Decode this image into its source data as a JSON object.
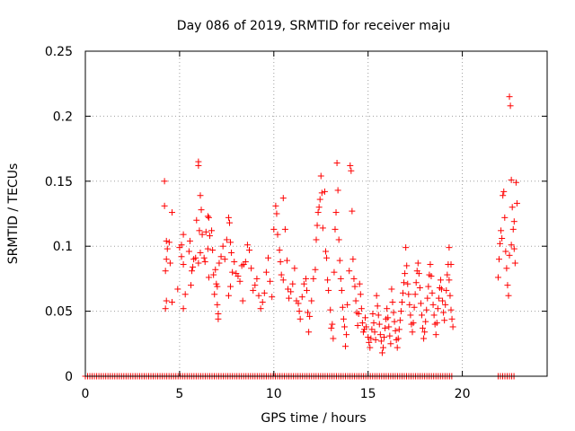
{
  "chart_data": {
    "type": "scatter",
    "title": "Day 086 of 2019, SRMTID for receiver maju",
    "xlabel": "GPS time / hours",
    "ylabel": "SRMTID / TECUs",
    "xlim": [
      0,
      24.5
    ],
    "ylim": [
      0,
      0.25
    ],
    "xticks": [
      0,
      5,
      10,
      15,
      20
    ],
    "xtick_labels": [
      "0",
      "5",
      "10",
      "15",
      "20"
    ],
    "yticks": [
      0,
      0.05,
      0.1,
      0.15,
      0.2,
      0.25
    ],
    "ytick_labels": [
      "0",
      "0.05",
      "0.1",
      "0.15",
      "0.2",
      "0.25"
    ],
    "grid": true,
    "marker": "+",
    "color": "#ff0000",
    "series": [
      {
        "name": "SRMTID",
        "zero_ranges": [
          [
            0.0,
            4.1
          ],
          [
            4.2,
            19.5
          ],
          [
            21.9,
            22.8
          ]
        ],
        "zero_spacing": 0.12,
        "points": [
          [
            4.2,
            0.15
          ],
          [
            4.2,
            0.131
          ],
          [
            4.25,
            0.081
          ],
          [
            4.3,
            0.104
          ],
          [
            4.3,
            0.058
          ],
          [
            4.25,
            0.052
          ],
          [
            4.3,
            0.09
          ],
          [
            4.35,
            0.098
          ],
          [
            4.45,
            0.103
          ],
          [
            4.6,
            0.126
          ],
          [
            4.6,
            0.057
          ],
          [
            4.5,
            0.087
          ],
          [
            4.9,
            0.067
          ],
          [
            5.0,
            0.099
          ],
          [
            5.1,
            0.101
          ],
          [
            5.2,
            0.109
          ],
          [
            5.2,
            0.052
          ],
          [
            5.3,
            0.063
          ],
          [
            5.1,
            0.092
          ],
          [
            5.2,
            0.086
          ],
          [
            5.5,
            0.096
          ],
          [
            5.55,
            0.104
          ],
          [
            5.6,
            0.07
          ],
          [
            5.65,
            0.081
          ],
          [
            5.7,
            0.084
          ],
          [
            5.75,
            0.09
          ],
          [
            5.85,
            0.091
          ],
          [
            5.9,
            0.12
          ],
          [
            6.0,
            0.165
          ],
          [
            6.0,
            0.162
          ],
          [
            6.05,
            0.112
          ],
          [
            6.1,
            0.139
          ],
          [
            6.15,
            0.128
          ],
          [
            6.2,
            0.109
          ],
          [
            6.0,
            0.087
          ],
          [
            6.1,
            0.095
          ],
          [
            6.3,
            0.091
          ],
          [
            6.35,
            0.088
          ],
          [
            6.4,
            0.111
          ],
          [
            6.5,
            0.123
          ],
          [
            6.55,
            0.122
          ],
          [
            6.6,
            0.108
          ],
          [
            6.7,
            0.112
          ],
          [
            6.8,
            0.078
          ],
          [
            6.75,
            0.097
          ],
          [
            6.5,
            0.098
          ],
          [
            6.55,
            0.076
          ],
          [
            6.9,
            0.082
          ],
          [
            6.85,
            0.063
          ],
          [
            6.95,
            0.071
          ],
          [
            7.0,
            0.069
          ],
          [
            7.0,
            0.055
          ],
          [
            7.05,
            0.048
          ],
          [
            7.05,
            0.044
          ],
          [
            7.1,
            0.087
          ],
          [
            7.2,
            0.092
          ],
          [
            7.3,
            0.1
          ],
          [
            7.4,
            0.09
          ],
          [
            7.5,
            0.105
          ],
          [
            7.6,
            0.122
          ],
          [
            7.65,
            0.118
          ],
          [
            7.7,
            0.103
          ],
          [
            7.75,
            0.095
          ],
          [
            7.8,
            0.08
          ],
          [
            7.7,
            0.069
          ],
          [
            7.6,
            0.062
          ],
          [
            7.9,
            0.088
          ],
          [
            8.0,
            0.079
          ],
          [
            8.1,
            0.077
          ],
          [
            8.2,
            0.073
          ],
          [
            8.3,
            0.085
          ],
          [
            8.35,
            0.058
          ],
          [
            8.4,
            0.086
          ],
          [
            8.5,
            0.088
          ],
          [
            8.6,
            0.101
          ],
          [
            8.7,
            0.097
          ],
          [
            8.8,
            0.083
          ],
          [
            8.9,
            0.066
          ],
          [
            9.0,
            0.07
          ],
          [
            9.1,
            0.075
          ],
          [
            9.2,
            0.062
          ],
          [
            9.3,
            0.052
          ],
          [
            9.4,
            0.057
          ],
          [
            9.5,
            0.064
          ],
          [
            9.6,
            0.08
          ],
          [
            9.7,
            0.091
          ],
          [
            9.8,
            0.073
          ],
          [
            9.9,
            0.061
          ],
          [
            10.0,
            0.113
          ],
          [
            10.1,
            0.131
          ],
          [
            10.15,
            0.125
          ],
          [
            10.2,
            0.109
          ],
          [
            10.3,
            0.097
          ],
          [
            10.35,
            0.088
          ],
          [
            10.4,
            0.078
          ],
          [
            10.5,
            0.074
          ],
          [
            10.5,
            0.137
          ],
          [
            10.6,
            0.113
          ],
          [
            10.7,
            0.089
          ],
          [
            10.75,
            0.067
          ],
          [
            10.8,
            0.06
          ],
          [
            10.9,
            0.065
          ],
          [
            11.0,
            0.071
          ],
          [
            11.1,
            0.083
          ],
          [
            11.2,
            0.058
          ],
          [
            11.3,
            0.056
          ],
          [
            11.35,
            0.05
          ],
          [
            11.4,
            0.044
          ],
          [
            11.5,
            0.061
          ],
          [
            11.6,
            0.071
          ],
          [
            11.7,
            0.075
          ],
          [
            11.75,
            0.066
          ],
          [
            11.8,
            0.049
          ],
          [
            11.85,
            0.034
          ],
          [
            11.9,
            0.046
          ],
          [
            12.0,
            0.058
          ],
          [
            12.1,
            0.075
          ],
          [
            12.2,
            0.082
          ],
          [
            12.25,
            0.105
          ],
          [
            12.3,
            0.116
          ],
          [
            12.35,
            0.126
          ],
          [
            12.4,
            0.13
          ],
          [
            12.45,
            0.136
          ],
          [
            12.5,
            0.154
          ],
          [
            12.55,
            0.141
          ],
          [
            12.6,
            0.114
          ],
          [
            12.7,
            0.142
          ],
          [
            12.75,
            0.096
          ],
          [
            12.8,
            0.091
          ],
          [
            12.85,
            0.074
          ],
          [
            12.9,
            0.066
          ],
          [
            13.0,
            0.051
          ],
          [
            13.05,
            0.037
          ],
          [
            13.1,
            0.04
          ],
          [
            13.15,
            0.029
          ],
          [
            13.2,
            0.08
          ],
          [
            13.25,
            0.113
          ],
          [
            13.3,
            0.126
          ],
          [
            13.35,
            0.164
          ],
          [
            13.4,
            0.143
          ],
          [
            13.45,
            0.105
          ],
          [
            13.5,
            0.089
          ],
          [
            13.55,
            0.075
          ],
          [
            13.6,
            0.066
          ],
          [
            13.65,
            0.053
          ],
          [
            13.7,
            0.044
          ],
          [
            13.75,
            0.038
          ],
          [
            13.8,
            0.023
          ],
          [
            13.85,
            0.032
          ],
          [
            13.9,
            0.055
          ],
          [
            14.0,
            0.081
          ],
          [
            14.05,
            0.162
          ],
          [
            14.1,
            0.158
          ],
          [
            14.15,
            0.127
          ],
          [
            14.2,
            0.09
          ],
          [
            14.25,
            0.075
          ],
          [
            14.3,
            0.069
          ],
          [
            14.35,
            0.058
          ],
          [
            14.4,
            0.049
          ],
          [
            14.45,
            0.039
          ],
          [
            14.5,
            0.048
          ],
          [
            14.55,
            0.071
          ],
          [
            14.6,
            0.063
          ],
          [
            14.65,
            0.052
          ],
          [
            14.7,
            0.041
          ],
          [
            14.75,
            0.034
          ],
          [
            14.8,
            0.036
          ],
          [
            14.85,
            0.045
          ],
          [
            14.9,
            0.038
          ],
          [
            15.0,
            0.03
          ],
          [
            15.05,
            0.026
          ],
          [
            15.1,
            0.022
          ],
          [
            15.15,
            0.029
          ],
          [
            15.2,
            0.036
          ],
          [
            15.25,
            0.048
          ],
          [
            15.3,
            0.041
          ],
          [
            15.35,
            0.034
          ],
          [
            15.4,
            0.028
          ],
          [
            15.45,
            0.062
          ],
          [
            15.5,
            0.054
          ],
          [
            15.55,
            0.047
          ],
          [
            15.6,
            0.04
          ],
          [
            15.65,
            0.032
          ],
          [
            15.7,
            0.027
          ],
          [
            15.75,
            0.018
          ],
          [
            15.8,
            0.022
          ],
          [
            15.85,
            0.03
          ],
          [
            15.9,
            0.037
          ],
          [
            15.95,
            0.044
          ],
          [
            16.0,
            0.052
          ],
          [
            16.05,
            0.045
          ],
          [
            16.1,
            0.038
          ],
          [
            16.15,
            0.031
          ],
          [
            16.2,
            0.025
          ],
          [
            16.25,
            0.067
          ],
          [
            16.3,
            0.057
          ],
          [
            16.35,
            0.049
          ],
          [
            16.4,
            0.042
          ],
          [
            16.45,
            0.035
          ],
          [
            16.5,
            0.028
          ],
          [
            16.55,
            0.022
          ],
          [
            16.6,
            0.029
          ],
          [
            16.65,
            0.036
          ],
          [
            16.7,
            0.043
          ],
          [
            16.75,
            0.05
          ],
          [
            16.8,
            0.057
          ],
          [
            16.85,
            0.064
          ],
          [
            16.9,
            0.072
          ],
          [
            16.95,
            0.079
          ],
          [
            17.0,
            0.099
          ],
          [
            17.05,
            0.085
          ],
          [
            17.1,
            0.071
          ],
          [
            17.15,
            0.063
          ],
          [
            17.2,
            0.055
          ],
          [
            17.25,
            0.047
          ],
          [
            17.3,
            0.04
          ],
          [
            17.35,
            0.034
          ],
          [
            17.4,
            0.041
          ],
          [
            17.45,
            0.053
          ],
          [
            17.5,
            0.063
          ],
          [
            17.55,
            0.072
          ],
          [
            17.6,
            0.081
          ],
          [
            17.65,
            0.087
          ],
          [
            17.7,
            0.079
          ],
          [
            17.75,
            0.068
          ],
          [
            17.8,
            0.056
          ],
          [
            17.85,
            0.047
          ],
          [
            17.9,
            0.037
          ],
          [
            17.95,
            0.029
          ],
          [
            18.0,
            0.034
          ],
          [
            18.05,
            0.042
          ],
          [
            18.1,
            0.051
          ],
          [
            18.15,
            0.06
          ],
          [
            18.2,
            0.069
          ],
          [
            18.25,
            0.078
          ],
          [
            18.3,
            0.086
          ],
          [
            18.35,
            0.077
          ],
          [
            18.4,
            0.064
          ],
          [
            18.45,
            0.055
          ],
          [
            18.5,
            0.047
          ],
          [
            18.55,
            0.04
          ],
          [
            18.6,
            0.032
          ],
          [
            18.65,
            0.041
          ],
          [
            18.7,
            0.052
          ],
          [
            18.75,
            0.06
          ],
          [
            18.8,
            0.068
          ],
          [
            18.85,
            0.074
          ],
          [
            18.9,
            0.067
          ],
          [
            18.95,
            0.058
          ],
          [
            19.0,
            0.049
          ],
          [
            19.05,
            0.043
          ],
          [
            19.1,
            0.055
          ],
          [
            19.15,
            0.066
          ],
          [
            19.2,
            0.078
          ],
          [
            19.25,
            0.086
          ],
          [
            19.3,
            0.074
          ],
          [
            19.35,
            0.062
          ],
          [
            19.4,
            0.051
          ],
          [
            19.45,
            0.044
          ],
          [
            19.5,
            0.038
          ],
          [
            19.3,
            0.099
          ],
          [
            19.4,
            0.086
          ],
          [
            21.9,
            0.076
          ],
          [
            21.95,
            0.09
          ],
          [
            22.0,
            0.102
          ],
          [
            22.05,
            0.112
          ],
          [
            22.1,
            0.106
          ],
          [
            22.15,
            0.139
          ],
          [
            22.2,
            0.142
          ],
          [
            22.25,
            0.122
          ],
          [
            22.3,
            0.096
          ],
          [
            22.35,
            0.083
          ],
          [
            22.4,
            0.07
          ],
          [
            22.45,
            0.062
          ],
          [
            22.5,
            0.215
          ],
          [
            22.55,
            0.208
          ],
          [
            22.6,
            0.151
          ],
          [
            22.65,
            0.13
          ],
          [
            22.7,
            0.113
          ],
          [
            22.75,
            0.098
          ],
          [
            22.8,
            0.087
          ],
          [
            22.85,
            0.149
          ],
          [
            22.9,
            0.133
          ],
          [
            22.75,
            0.119
          ],
          [
            22.6,
            0.101
          ],
          [
            22.5,
            0.093
          ]
        ]
      }
    ]
  }
}
